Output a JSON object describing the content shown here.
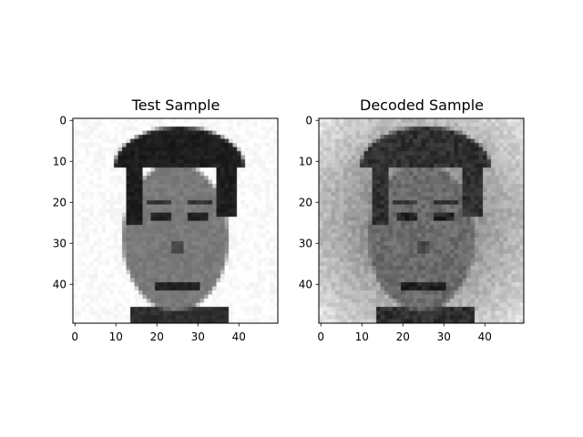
{
  "panels": [
    {
      "id": "test",
      "title": "Test Sample",
      "grid_size": 50,
      "x_ticks": [
        "0",
        "10",
        "20",
        "30",
        "40"
      ],
      "y_ticks": [
        "0",
        "10",
        "20",
        "30",
        "40"
      ],
      "style": "clean"
    },
    {
      "id": "decoded",
      "title": "Decoded Sample",
      "grid_size": 50,
      "x_ticks": [
        "0",
        "10",
        "20",
        "30",
        "40"
      ],
      "y_ticks": [
        "0",
        "10",
        "20",
        "30",
        "40"
      ],
      "style": "reconstructed"
    }
  ],
  "colormap": "gray",
  "image_description": "50x50 grayscale face image"
}
